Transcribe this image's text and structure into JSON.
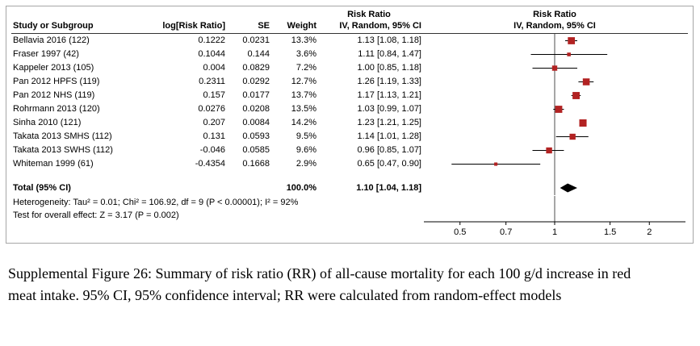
{
  "chart_data": {
    "type": "forest",
    "effect_measure": "Risk Ratio",
    "method": "IV, Random, 95% CI",
    "header": {
      "study_col": "Study or Subgroup",
      "log_col": "log[Risk Ratio]",
      "se_col": "SE",
      "weight_col": "Weight",
      "ci_col_title": "Risk Ratio",
      "ci_col_sub": "IV, Random, 95% CI",
      "plot_col_title": "Risk Ratio",
      "plot_col_sub": "IV, Random, 95% CI"
    },
    "studies": [
      {
        "name": "Bellavia 2016 (122)",
        "log_rr": "0.1222",
        "se": "0.0231",
        "weight": "13.3%",
        "ci_text": "1.13 [1.08, 1.18]",
        "est": 1.13,
        "lo": 1.08,
        "hi": 1.18,
        "weight_pct": 13.3
      },
      {
        "name": "Fraser 1997 (42)",
        "log_rr": "0.1044",
        "se": "0.144",
        "weight": "3.6%",
        "ci_text": "1.11 [0.84, 1.47]",
        "est": 1.11,
        "lo": 0.84,
        "hi": 1.47,
        "weight_pct": 3.6
      },
      {
        "name": "Kappeler 2013 (105)",
        "log_rr": "0.004",
        "se": "0.0829",
        "weight": "7.2%",
        "ci_text": "1.00 [0.85, 1.18]",
        "est": 1.0,
        "lo": 0.85,
        "hi": 1.18,
        "weight_pct": 7.2
      },
      {
        "name": "Pan 2012 HPFS (119)",
        "log_rr": "0.2311",
        "se": "0.0292",
        "weight": "12.7%",
        "ci_text": "1.26 [1.19, 1.33]",
        "est": 1.26,
        "lo": 1.19,
        "hi": 1.33,
        "weight_pct": 12.7
      },
      {
        "name": "Pan 2012 NHS (119)",
        "log_rr": "0.157",
        "se": "0.0177",
        "weight": "13.7%",
        "ci_text": "1.17 [1.13, 1.21]",
        "est": 1.17,
        "lo": 1.13,
        "hi": 1.21,
        "weight_pct": 13.7
      },
      {
        "name": "Rohrmann 2013 (120)",
        "log_rr": "0.0276",
        "se": "0.0208",
        "weight": "13.5%",
        "ci_text": "1.03 [0.99, 1.07]",
        "est": 1.03,
        "lo": 0.99,
        "hi": 1.07,
        "weight_pct": 13.5
      },
      {
        "name": "Sinha 2010 (121)",
        "log_rr": "0.207",
        "se": "0.0084",
        "weight": "14.2%",
        "ci_text": "1.23 [1.21, 1.25]",
        "est": 1.23,
        "lo": 1.21,
        "hi": 1.25,
        "weight_pct": 14.2
      },
      {
        "name": "Takata 2013 SMHS (112)",
        "log_rr": "0.131",
        "se": "0.0593",
        "weight": "9.5%",
        "ci_text": "1.14 [1.01, 1.28]",
        "est": 1.14,
        "lo": 1.01,
        "hi": 1.28,
        "weight_pct": 9.5
      },
      {
        "name": "Takata 2013 SWHS (112)",
        "log_rr": "-0.046",
        "se": "0.0585",
        "weight": "9.6%",
        "ci_text": "0.96 [0.85, 1.07]",
        "est": 0.96,
        "lo": 0.85,
        "hi": 1.07,
        "weight_pct": 9.6
      },
      {
        "name": "Whiteman 1999 (61)",
        "log_rr": "-0.4354",
        "se": "0.1668",
        "weight": "2.9%",
        "ci_text": "0.65 [0.47, 0.90]",
        "est": 0.65,
        "lo": 0.47,
        "hi": 0.9,
        "weight_pct": 2.9
      }
    ],
    "total": {
      "label": "Total (95% CI)",
      "weight": "100.0%",
      "ci_text": "1.10 [1.04, 1.18]",
      "est": 1.1,
      "lo": 1.04,
      "hi": 1.18
    },
    "footnotes": {
      "heterogeneity": "Heterogeneity: Tau² = 0.01; Chi² = 106.92, df = 9 (P < 0.00001); I² = 92%",
      "overall_effect": "Test for overall effect: Z = 3.17 (P = 0.002)"
    },
    "axis": {
      "scale": "log",
      "min": 0.4,
      "max": 2.5,
      "ticks": [
        0.5,
        0.7,
        1,
        1.5,
        2
      ],
      "tick_labels": [
        "0.5",
        "0.7",
        "1",
        "1.5",
        "2"
      ],
      "reference_line": 1
    }
  },
  "caption": "Supplemental Figure 26: Summary of risk ratio (RR) of all-cause mortality for each 100 g/d increase in red meat intake. 95% CI, 95% confidence interval; RR were calculated from random-effect models",
  "colors": {
    "marker": "#b22222",
    "ci_line": "#000000",
    "diamond": "#000000",
    "border": "#a6a6a6"
  }
}
